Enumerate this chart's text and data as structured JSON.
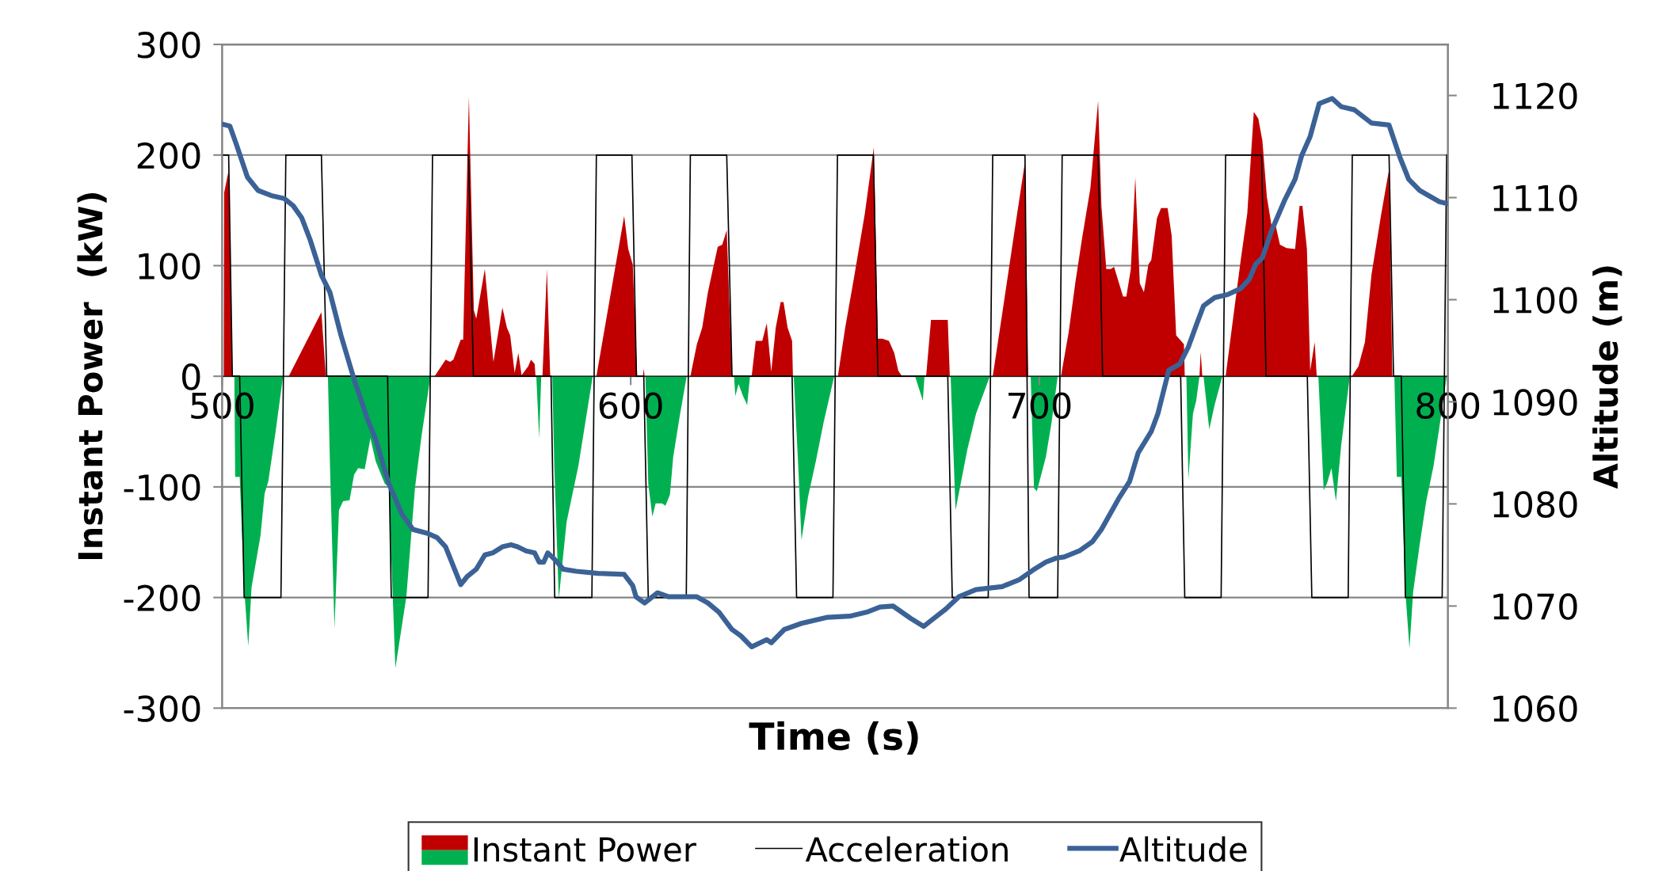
{
  "chart_data": {
    "type": "area",
    "xlabel": "Time (s)",
    "ylabel": "Instant Power  (kW)",
    "y2label": "Altitude (m)",
    "xlim": [
      500,
      800
    ],
    "xticks": [
      500,
      600,
      700,
      800
    ],
    "ylim": [
      -300,
      300
    ],
    "yticks": [
      -300,
      -200,
      -100,
      0,
      100,
      200,
      300
    ],
    "y2lim": [
      1060,
      1125
    ],
    "y2ticks": [
      1060,
      1070,
      1080,
      1090,
      1100,
      1110,
      1120
    ],
    "grid": "y",
    "legend": "bottom",
    "series": [
      {
        "name": "Instant Power",
        "color": "#c00000",
        "x": [
          500.4,
          500.5,
          501.6,
          502.5,
          516.3,
          524.3,
          525.4,
          552.0,
          554.7,
          555.8,
          556.6,
          558.4,
          559.0,
          560.4,
          561.6,
          562.2,
          564.3,
          566.4,
          568.6,
          569.7,
          570.5,
          571.6,
          572.5,
          573.3,
          574.9,
          575.6,
          576.5,
          576.7,
          578.4,
          579.5,
          580.3,
          591.6,
          598.4,
          599.4,
          600.5,
          601.6,
          603.0,
          603.2,
          603.4,
          614.6,
          616.2,
          617.5,
          618.9,
          620.0,
          621.3,
          622.4,
          623.5,
          624.8,
          629.6,
          630.6,
          632.2,
          633.3,
          634.4,
          635.5,
          636.7,
          637.4,
          638.4,
          639.5,
          639.7,
          650.7,
          652.5,
          654.6,
          657.3,
          659.5,
          660.5,
          661.6,
          663.2,
          664.5,
          665.5,
          666.4,
          672.3,
          673.5,
          677.6,
          678.1,
          688.6,
          690.9,
          693.6,
          696.5,
          697.3,
          705.3,
          707.2,
          708.8,
          710.4,
          712.5,
          714.4,
          715.2,
          716.4,
          717.5,
          718.3,
          720.5,
          721.3,
          722.4,
          723.5,
          724.6,
          725.6,
          726.7,
          727.4,
          728.8,
          729.8,
          731.4,
          732.4,
          733.5,
          735.4,
          735.6,
          739.2,
          739.5,
          739.9,
          745.6,
          747.7,
          749.3,
          750.9,
          752.5,
          753.6,
          754.6,
          755.7,
          756.8,
          757.8,
          758.9,
          760.5,
          762.6,
          763.7,
          764.4,
          765.5,
          766.3,
          767.4,
          767.9,
          776.5,
          778.1,
          779.7,
          781.3,
          783.7,
          785.6,
          786.4
        ],
        "values": [
          0,
          166,
          186,
          0,
          0,
          58,
          0,
          0,
          15,
          13,
          15,
          33,
          33,
          253,
          60,
          52,
          97,
          13,
          62,
          44,
          37,
          3,
          21,
          1,
          9,
          15,
          11,
          0,
          0,
          97,
          0,
          0,
          145,
          115,
          101,
          0,
          0,
          7,
          0,
          0,
          29,
          44,
          76,
          95,
          117,
          119,
          132,
          0,
          0,
          32,
          32,
          48,
          4,
          44,
          67,
          67,
          44,
          32,
          0,
          0,
          44,
          88,
          147,
          207,
          34,
          34,
          32,
          21,
          5,
          0,
          0,
          51,
          51,
          0,
          0,
          56,
          123,
          194,
          0,
          0,
          40,
          84,
          123,
          170,
          249,
          154,
          97,
          97,
          99,
          72,
          72,
          97,
          180,
          84,
          76,
          101,
          105,
          143,
          152,
          152,
          127,
          37,
          29,
          0,
          0,
          22,
          0,
          0,
          60,
          105,
          147,
          239,
          233,
          213,
          162,
          137,
          137,
          119,
          116,
          115,
          154,
          154,
          115,
          5,
          31,
          0,
          0,
          9,
          31,
          92,
          147,
          187,
          0
        ]
      },
      {
        "color": "#00b050",
        "x": [
          503.0,
          503.2,
          504.3,
          505.4,
          506.4,
          507.2,
          509.4,
          510.4,
          511.3,
          513.1,
          514.9,
          525.9,
          526.4,
          527.5,
          528.6,
          529.6,
          531.2,
          532.3,
          533.3,
          534.9,
          536.3,
          537.6,
          539.8,
          540.8,
          542.4,
          545.1,
          547.2,
          548.8,
          551.0,
          576.9,
          577.6,
          578.1,
          580.8,
          581.3,
          582.4,
          584.3,
          587.2,
          590.7,
          603.6,
          604.3,
          605.3,
          606.1,
          607.7,
          608.5,
          609.6,
          610.4,
          612.0,
          613.7,
          625.3,
          625.6,
          626.4,
          627.4,
          628.5,
          629.2,
          639.9,
          641.0,
          641.8,
          643.4,
          645.3,
          647.2,
          649.8,
          669.6,
          671.5,
          671.9,
          678.3,
          679.5,
          682.4,
          684.5,
          687.9,
          697.9,
          698.7,
          699.4,
          701.6,
          703.0,
          704.5,
          736.0,
          736.5,
          737.6,
          738.4,
          739.2,
          740.2,
          741.6,
          742.9,
          744.8,
          768.3,
          769.6,
          770.4,
          771.5,
          772.6,
          773.9,
          776.0,
          786.9,
          787.5,
          788.6,
          789.6,
          790.6,
          791.5,
          793.1,
          794.7,
          796.5,
          798.4,
          799.7
        ],
        "values": [
          0,
          -91,
          -91,
          -191,
          -244,
          -191,
          -144,
          -106,
          -95,
          -50,
          0,
          0,
          -81,
          -228,
          -121,
          -113,
          -112,
          -89,
          -83,
          -84,
          -56,
          -77,
          -97,
          -100,
          -264,
          -199,
          -101,
          -54,
          0,
          0,
          -56,
          0,
          0,
          -81,
          -201,
          -132,
          -81,
          0,
          0,
          -97,
          -127,
          -115,
          -115,
          -117,
          -107,
          -73,
          -36,
          0,
          0,
          -18,
          -7,
          -17,
          -26,
          0,
          0,
          -81,
          -148,
          -109,
          -77,
          -42,
          0,
          0,
          -22,
          0,
          0,
          -121,
          -66,
          -34,
          0,
          0,
          -101,
          -104,
          -73,
          -42,
          0,
          0,
          -93,
          -34,
          -22,
          0,
          0,
          -48,
          -26,
          0,
          0,
          -103,
          -97,
          -83,
          -113,
          -62,
          0,
          0,
          -91,
          -91,
          -195,
          -246,
          -195,
          -152,
          -113,
          -81,
          -34,
          0
        ]
      },
      {
        "name": "Acceleration",
        "type": "line",
        "color": "#000000",
        "x": [
          500,
          501.6,
          502.5,
          504.3,
          505.4,
          514.4,
          515.6,
          524.3,
          525.6,
          540.5,
          541.4,
          550.4,
          551.5,
          560.3,
          561.5,
          580.5,
          581.4,
          590.5,
          591.6,
          600.3,
          601.4,
          603.2,
          604.3,
          613.6,
          614.6,
          623.5,
          624.8,
          639.5,
          640.6,
          649.5,
          650.6,
          659.4,
          660.5,
          677.6,
          678.7,
          687.5,
          688.6,
          696.5,
          697.5,
          704.5,
          705.6,
          714.4,
          715.5,
          734.6,
          735.6,
          744.5,
          745.6,
          754.4,
          755.5,
          765.6,
          766.7,
          775.6,
          776.6,
          785.6,
          786.7,
          788.6,
          789.6,
          798.6,
          799.7
        ],
        "values": [
          200,
          200,
          0,
          0,
          -200,
          -200,
          200,
          200,
          0,
          0,
          -200,
          -200,
          200,
          200,
          0,
          0,
          -200,
          -200,
          200,
          200,
          0,
          0,
          -200,
          -200,
          200,
          200,
          0,
          0,
          -200,
          -200,
          200,
          200,
          0,
          0,
          -200,
          -200,
          200,
          200,
          -200,
          -200,
          200,
          200,
          0,
          0,
          -200,
          -200,
          200,
          200,
          0,
          0,
          -200,
          -200,
          200,
          200,
          0,
          0,
          -200,
          -200,
          200
        ]
      },
      {
        "name": "Altitude",
        "type": "line",
        "axis": "y2",
        "color": "#3b6296",
        "x": [
          500,
          501.9,
          503.5,
          506.2,
          508.8,
          512.0,
          515.2,
          517.4,
          519.5,
          521.6,
          524.3,
          526.4,
          529.1,
          532.3,
          535.5,
          537.6,
          540.8,
          544.0,
          546.7,
          550.4,
          552.6,
          554.7,
          556.6,
          558.4,
          560.0,
          562.2,
          564.3,
          566.2,
          568.6,
          570.7,
          572.3,
          574.4,
          576.5,
          577.6,
          578.7,
          579.7,
          581.3,
          583.5,
          586.7,
          592.0,
          598.4,
          600.5,
          601.3,
          603.4,
          606.6,
          609.3,
          616.2,
          618.9,
          621.6,
          624.8,
          626.9,
          629.6,
          632.2,
          633.3,
          634.4,
          637.6,
          641.8,
          648.2,
          653.6,
          657.8,
          661.0,
          664.2,
          668.5,
          671.7,
          673.9,
          677.1,
          680.3,
          684.5,
          690.9,
          695.2,
          698.4,
          701.6,
          704.2,
          706.1,
          709.8,
          713.0,
          715.2,
          719.4,
          722.1,
          724.2,
          727.4,
          729.0,
          731.7,
          734.4,
          736.5,
          738.6,
          740.2,
          742.9,
          746.1,
          749.3,
          751.4,
          753.0,
          754.6,
          756.8,
          760.0,
          762.6,
          764.2,
          766.3,
          768.5,
          771.7,
          773.9,
          777.1,
          781.3,
          785.6,
          788.3,
          790.4,
          793.1,
          795.7,
          797.9,
          800
        ],
        "values": [
          1117.2,
          1117.0,
          1115.2,
          1112.0,
          1110.7,
          1110.2,
          1109.9,
          1109.2,
          1108.0,
          1105.8,
          1102.4,
          1100.7,
          1096.5,
          1092.2,
          1088.4,
          1086.3,
          1082.0,
          1079.0,
          1077.5,
          1077.1,
          1076.7,
          1075.8,
          1073.9,
          1072.1,
          1072.9,
          1073.6,
          1075.0,
          1075.2,
          1075.8,
          1076.0,
          1075.8,
          1075.4,
          1075.2,
          1074.3,
          1074.3,
          1075.2,
          1074.6,
          1073.6,
          1073.4,
          1073.2,
          1073.1,
          1072.0,
          1070.9,
          1070.3,
          1071.3,
          1070.9,
          1070.9,
          1070.3,
          1069.4,
          1067.7,
          1067.1,
          1066.0,
          1066.5,
          1066.7,
          1066.4,
          1067.7,
          1068.3,
          1068.9,
          1069.0,
          1069.4,
          1069.9,
          1070.0,
          1068.8,
          1068.0,
          1068.7,
          1069.7,
          1070.9,
          1071.6,
          1071.9,
          1072.6,
          1073.5,
          1074.3,
          1074.7,
          1074.8,
          1075.4,
          1076.3,
          1077.5,
          1080.5,
          1082.2,
          1085.0,
          1087.1,
          1088.8,
          1093.1,
          1093.7,
          1095.4,
          1097.7,
          1099.4,
          1100.2,
          1100.5,
          1101.1,
          1102.0,
          1103.5,
          1104.1,
          1106.7,
          1109.7,
          1111.8,
          1114.1,
          1116.0,
          1119.2,
          1119.7,
          1118.9,
          1118.6,
          1117.3,
          1117.1,
          1113.9,
          1111.8,
          1110.7,
          1110.1,
          1109.6,
          1109.4
        ]
      }
    ]
  }
}
